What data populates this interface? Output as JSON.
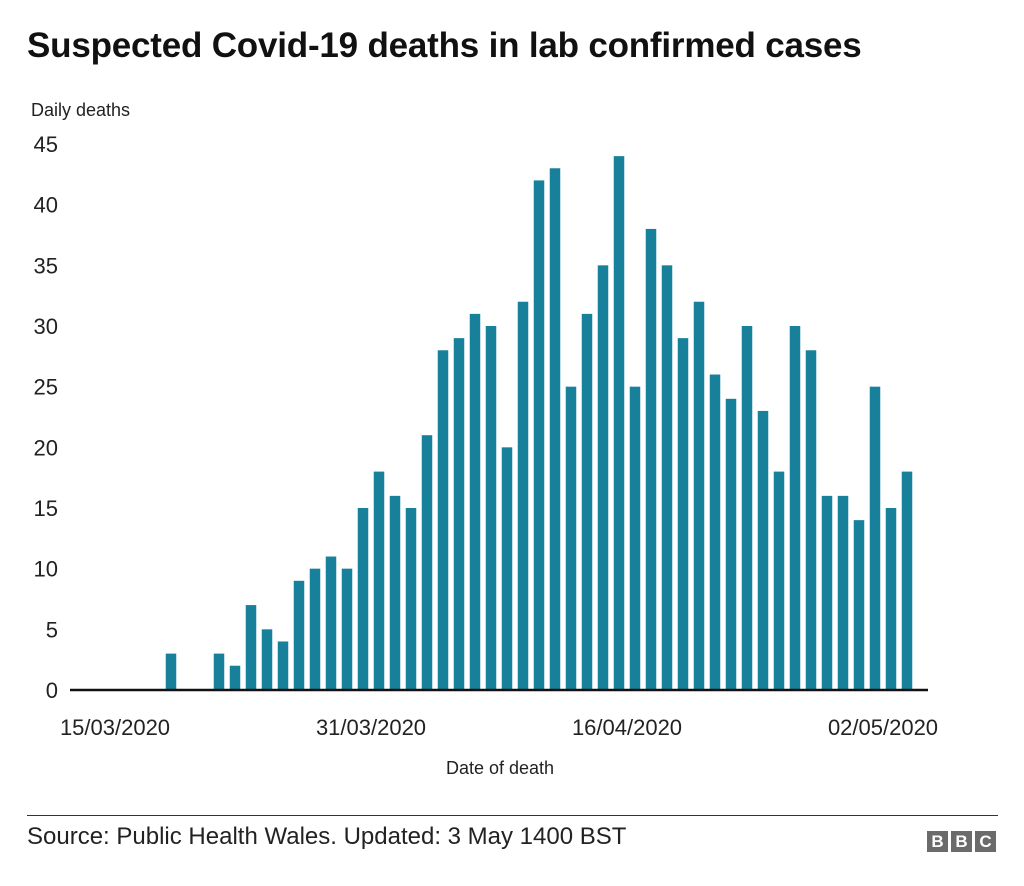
{
  "title": "Suspected Covid-19 deaths in lab confirmed cases",
  "footer": {
    "source": "Source: Public Health Wales. Updated: 3 May 1400 BST",
    "logo_letters": [
      "B",
      "B",
      "C"
    ]
  },
  "colors": {
    "bar": "#17819c",
    "axis": "#111111",
    "text": "#222222"
  },
  "chart_data": {
    "type": "bar",
    "ylabel": "Daily deaths",
    "xlabel": "Date of death",
    "ylim": [
      0,
      45
    ],
    "yticks": [
      0,
      5,
      10,
      15,
      20,
      25,
      30,
      35,
      40,
      45
    ],
    "grid": false,
    "x_start": "15/03/2020",
    "x_end": "03/05/2020",
    "xticks": [
      "15/03/2020",
      "31/03/2020",
      "16/04/2020",
      "02/05/2020"
    ],
    "categories": [
      "18/03/2020",
      "19/03/2020",
      "20/03/2020",
      "21/03/2020",
      "22/03/2020",
      "23/03/2020",
      "24/03/2020",
      "25/03/2020",
      "26/03/2020",
      "27/03/2020",
      "28/03/2020",
      "29/03/2020",
      "30/03/2020",
      "31/03/2020",
      "01/04/2020",
      "02/04/2020",
      "03/04/2020",
      "04/04/2020",
      "05/04/2020",
      "06/04/2020",
      "07/04/2020",
      "08/04/2020",
      "09/04/2020",
      "10/04/2020",
      "11/04/2020",
      "12/04/2020",
      "13/04/2020",
      "14/04/2020",
      "15/04/2020",
      "16/04/2020",
      "17/04/2020",
      "18/04/2020",
      "19/04/2020",
      "20/04/2020",
      "21/04/2020",
      "22/04/2020",
      "23/04/2020",
      "24/04/2020",
      "25/04/2020",
      "26/04/2020",
      "27/04/2020",
      "28/04/2020",
      "29/04/2020",
      "30/04/2020",
      "01/05/2020",
      "02/05/2020",
      "03/05/2020"
    ],
    "values": [
      3,
      0,
      0,
      3,
      2,
      7,
      5,
      4,
      9,
      10,
      11,
      10,
      15,
      18,
      16,
      15,
      21,
      28,
      29,
      31,
      30,
      20,
      32,
      42,
      43,
      25,
      31,
      35,
      44,
      25,
      38,
      35,
      29,
      32,
      26,
      24,
      30,
      23,
      18,
      30,
      28,
      16,
      16,
      14,
      25,
      15,
      18
    ]
  }
}
